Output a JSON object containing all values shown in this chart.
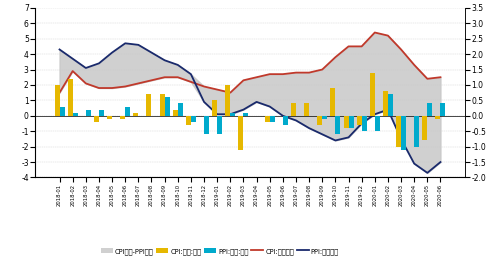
{
  "months": [
    "2018-01",
    "2018-02",
    "2018-03",
    "2018-04",
    "2018-05",
    "2018-06",
    "2018-07",
    "2018-08",
    "2018-09",
    "2018-10",
    "2018-11",
    "2018-12",
    "2019-01",
    "2019-02",
    "2019-03",
    "2019-04",
    "2019-05",
    "2019-06",
    "2019-07",
    "2019-08",
    "2019-09",
    "2019-10",
    "2019-11",
    "2019-12",
    "2020-01",
    "2020-02",
    "2020-03",
    "2020-04",
    "2020-05",
    "2020-06"
  ],
  "CPI_yoy": [
    1.5,
    2.9,
    2.1,
    1.8,
    1.8,
    1.9,
    2.1,
    2.3,
    2.5,
    2.5,
    2.2,
    1.9,
    1.7,
    1.5,
    2.3,
    2.5,
    2.7,
    2.7,
    2.8,
    2.8,
    3.0,
    3.8,
    4.5,
    4.5,
    5.4,
    5.2,
    4.3,
    3.3,
    2.4,
    2.5
  ],
  "PPI_yoy": [
    4.3,
    3.7,
    3.1,
    3.4,
    4.1,
    4.7,
    4.6,
    4.1,
    3.6,
    3.3,
    2.7,
    0.9,
    0.1,
    0.1,
    0.4,
    0.9,
    0.6,
    0.0,
    -0.3,
    -0.8,
    -1.2,
    -1.6,
    -1.4,
    -0.5,
    0.1,
    0.4,
    -1.5,
    -3.1,
    -3.7,
    -3.0
  ],
  "CPI_mom": [
    1.0,
    1.2,
    0.0,
    -0.2,
    -0.1,
    -0.1,
    0.1,
    0.7,
    0.7,
    0.2,
    -0.3,
    0.0,
    0.5,
    1.0,
    -1.1,
    0.0,
    -0.2,
    0.0,
    0.4,
    0.4,
    -0.3,
    0.9,
    -0.4,
    -0.3,
    1.4,
    0.8,
    -1.0,
    0.0,
    -0.8,
    -0.1
  ],
  "PPI_mom": [
    0.3,
    0.1,
    0.2,
    0.2,
    0.0,
    0.3,
    0.0,
    0.0,
    0.6,
    0.4,
    -0.2,
    -0.6,
    -0.6,
    0.1,
    0.1,
    0.0,
    -0.2,
    -0.3,
    0.0,
    0.0,
    -0.1,
    -0.6,
    -0.4,
    -0.5,
    -0.5,
    0.7,
    -1.1,
    -1.0,
    0.4,
    0.4
  ],
  "ylim_left": [
    -4.0,
    7.0
  ],
  "ylim_right": [
    -2.0,
    3.5
  ],
  "yticks_left": [
    -4,
    -3,
    -2,
    -1,
    0,
    1,
    2,
    3,
    4,
    5,
    6,
    7
  ],
  "yticks_right": [
    -2.0,
    -1.5,
    -1.0,
    -0.5,
    0.0,
    0.5,
    1.0,
    1.5,
    2.0,
    2.5,
    3.0,
    3.5
  ],
  "cpi_yoy_color": "#c0392b",
  "ppi_yoy_color": "#1a2a6c",
  "cpi_mom_color": "#e6b800",
  "ppi_mom_color": "#00aacc",
  "band_color": "#c8c8c8",
  "bar_width": 0.38,
  "legend_labels": [
    "CPI同比-PPI同比",
    "CPI:环比:右轴",
    "PPI:环比:右轴",
    "CPI:当月同比",
    "PPI:当月同比"
  ]
}
